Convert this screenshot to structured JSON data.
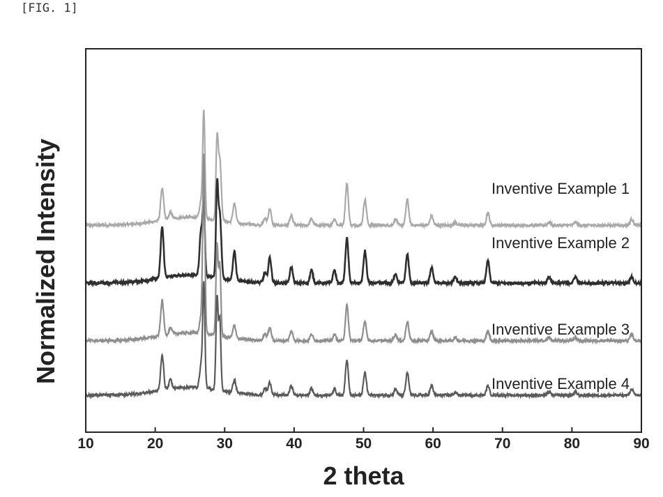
{
  "figure": {
    "label": "[FIG. 1]"
  },
  "chart_data": {
    "type": "line",
    "title": "",
    "xlabel": "2 theta",
    "ylabel": "Normalized Intensity",
    "xlim": [
      10,
      90
    ],
    "xticks": [
      10,
      20,
      30,
      40,
      50,
      60,
      70,
      80,
      90
    ],
    "grid": false,
    "legend": "inline labels, right side above each trace",
    "ytick_labels": "none",
    "series": [
      {
        "name": "Inventive Example 1",
        "color": "#a9a9a9",
        "baseline": 0.58,
        "peaks": [
          [
            21.0,
            0.1
          ],
          [
            22.2,
            0.02
          ],
          [
            26.6,
            0.05
          ],
          [
            27.0,
            0.33
          ],
          [
            28.9,
            0.24
          ],
          [
            29.3,
            0.19
          ],
          [
            31.4,
            0.06
          ],
          [
            35.8,
            0.02
          ],
          [
            36.5,
            0.05
          ],
          [
            39.6,
            0.03
          ],
          [
            42.5,
            0.02
          ],
          [
            45.8,
            0.02
          ],
          [
            47.6,
            0.13
          ],
          [
            50.2,
            0.08
          ],
          [
            54.6,
            0.02
          ],
          [
            56.3,
            0.08
          ],
          [
            59.8,
            0.03
          ],
          [
            63.2,
            0.01
          ],
          [
            67.9,
            0.04
          ],
          [
            76.7,
            0.01
          ],
          [
            80.5,
            0.01
          ],
          [
            88.6,
            0.02
          ]
        ]
      },
      {
        "name": "Inventive Example 2",
        "color": "#2e2e2e",
        "baseline": 0.4,
        "peaks": [
          [
            21.0,
            0.16
          ],
          [
            26.6,
            0.14
          ],
          [
            27.0,
            0.22
          ],
          [
            28.9,
            0.27
          ],
          [
            29.3,
            0.2
          ],
          [
            31.4,
            0.09
          ],
          [
            35.8,
            0.03
          ],
          [
            36.5,
            0.08
          ],
          [
            39.6,
            0.05
          ],
          [
            42.5,
            0.04
          ],
          [
            45.8,
            0.04
          ],
          [
            47.6,
            0.14
          ],
          [
            50.2,
            0.1
          ],
          [
            54.6,
            0.03
          ],
          [
            56.3,
            0.09
          ],
          [
            59.8,
            0.05
          ],
          [
            63.2,
            0.02
          ],
          [
            67.9,
            0.07
          ],
          [
            76.7,
            0.02
          ],
          [
            80.5,
            0.02
          ],
          [
            88.6,
            0.02
          ]
        ]
      },
      {
        "name": "Inventive Example 3",
        "color": "#8e8e8e",
        "baseline": 0.22,
        "peaks": [
          [
            21.0,
            0.11
          ],
          [
            22.2,
            0.02
          ],
          [
            26.6,
            0.05
          ],
          [
            27.0,
            0.55
          ],
          [
            28.9,
            0.28
          ],
          [
            29.3,
            0.22
          ],
          [
            31.4,
            0.04
          ],
          [
            35.8,
            0.02
          ],
          [
            36.5,
            0.04
          ],
          [
            39.6,
            0.03
          ],
          [
            42.5,
            0.02
          ],
          [
            45.8,
            0.02
          ],
          [
            47.6,
            0.11
          ],
          [
            50.2,
            0.06
          ],
          [
            54.6,
            0.02
          ],
          [
            56.3,
            0.06
          ],
          [
            59.8,
            0.03
          ],
          [
            63.2,
            0.01
          ],
          [
            67.9,
            0.03
          ],
          [
            76.7,
            0.01
          ],
          [
            80.5,
            0.01
          ],
          [
            88.6,
            0.02
          ]
        ]
      },
      {
        "name": "Inventive Example 4",
        "color": "#5a5a5a",
        "baseline": 0.05,
        "peaks": [
          [
            21.0,
            0.11
          ],
          [
            22.2,
            0.03
          ],
          [
            26.6,
            0.07
          ],
          [
            27.0,
            0.32
          ],
          [
            28.9,
            0.29
          ],
          [
            29.3,
            0.22
          ],
          [
            31.4,
            0.04
          ],
          [
            35.8,
            0.02
          ],
          [
            36.5,
            0.04
          ],
          [
            39.6,
            0.03
          ],
          [
            42.5,
            0.02
          ],
          [
            45.8,
            0.02
          ],
          [
            47.6,
            0.11
          ],
          [
            50.2,
            0.07
          ],
          [
            54.6,
            0.02
          ],
          [
            56.3,
            0.07
          ],
          [
            59.8,
            0.03
          ],
          [
            63.2,
            0.01
          ],
          [
            67.9,
            0.03
          ],
          [
            76.7,
            0.01
          ],
          [
            80.5,
            0.01
          ],
          [
            88.6,
            0.02
          ]
        ]
      }
    ]
  }
}
